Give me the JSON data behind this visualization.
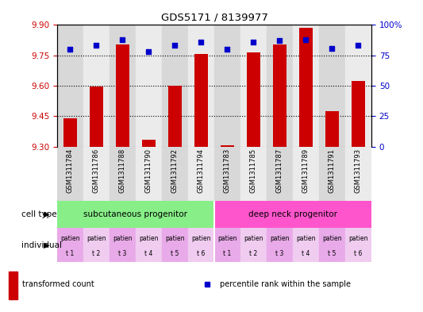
{
  "title": "GDS5171 / 8139977",
  "samples": [
    "GSM1311784",
    "GSM1311786",
    "GSM1311788",
    "GSM1311790",
    "GSM1311792",
    "GSM1311794",
    "GSM1311783",
    "GSM1311785",
    "GSM1311787",
    "GSM1311789",
    "GSM1311791",
    "GSM1311793"
  ],
  "bar_values": [
    9.44,
    9.595,
    9.805,
    9.335,
    9.6,
    9.755,
    9.305,
    9.765,
    9.805,
    9.885,
    9.475,
    9.625
  ],
  "dot_values": [
    80,
    83,
    88,
    78,
    83,
    86,
    80,
    86,
    87,
    88,
    81,
    83
  ],
  "ylim_left": [
    9.3,
    9.9
  ],
  "ylim_right": [
    0,
    100
  ],
  "yticks_left": [
    9.3,
    9.45,
    9.6,
    9.75,
    9.9
  ],
  "yticks_right": [
    0,
    25,
    50,
    75,
    100
  ],
  "bar_color": "#cc0000",
  "dot_color": "#0000cc",
  "bar_width": 0.5,
  "col_bg_even": "#d8d8d8",
  "col_bg_odd": "#ebebeb",
  "cell_type_groups": [
    {
      "label": "subcutaneous progenitor",
      "start": 0,
      "end": 6,
      "color": "#88ee88"
    },
    {
      "label": "deep neck progenitor",
      "start": 6,
      "end": 12,
      "color": "#ff55cc"
    }
  ],
  "patient_labels": [
    "patien",
    "patien",
    "patien",
    "patien",
    "patien",
    "patien",
    "patien",
    "patien",
    "patien",
    "patien",
    "patien",
    "patien"
  ],
  "t_labels": [
    "t 1",
    "t 2",
    "t 3",
    "t 4",
    "t 5",
    "t 6",
    "t 1",
    "t 2",
    "t 3",
    "t 4",
    "t 5",
    "t 6"
  ],
  "indiv_bg_colors": [
    "#e8aae8",
    "#f0ccf0",
    "#e8aae8",
    "#f0ccf0",
    "#e8aae8",
    "#f0ccf0",
    "#e8aae8",
    "#f0ccf0",
    "#e8aae8",
    "#f0ccf0",
    "#e8aae8",
    "#f0ccf0"
  ],
  "legend_bar_label": "transformed count",
  "legend_dot_label": "percentile rank within the sample",
  "left_axis_color": "#cc0000",
  "right_axis_color": "#0000cc",
  "cell_type_label": "cell type",
  "individual_label": "individual"
}
